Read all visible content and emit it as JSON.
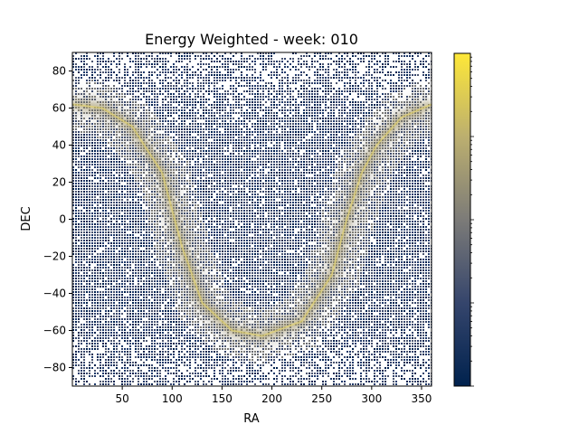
{
  "chart_data": {
    "type": "heatmap",
    "title": "Energy Weighted - week: 010",
    "xlabel": "RA",
    "ylabel": "DEC",
    "xlim": [
      0,
      360
    ],
    "ylim": [
      -90,
      90
    ],
    "x_ticks": [
      50,
      100,
      150,
      200,
      250,
      300,
      350
    ],
    "y_ticks": [
      -80,
      -60,
      -40,
      -20,
      0,
      20,
      40,
      60,
      80
    ],
    "colormap": "cividis",
    "colorbar_scale": "log",
    "colors": {
      "low": "#00224e",
      "mid": "#7c7b78",
      "high": "#fee838",
      "background": "#ffffff"
    },
    "galactic_plane_ridge": [
      {
        "ra": 0,
        "dec": 62
      },
      {
        "ra": 30,
        "dec": 60
      },
      {
        "ra": 60,
        "dec": 50
      },
      {
        "ra": 90,
        "dec": 25
      },
      {
        "ra": 110,
        "dec": -15
      },
      {
        "ra": 130,
        "dec": -45
      },
      {
        "ra": 160,
        "dec": -60
      },
      {
        "ra": 190,
        "dec": -63
      },
      {
        "ra": 230,
        "dec": -55
      },
      {
        "ra": 260,
        "dec": -30
      },
      {
        "ra": 275,
        "dec": 0
      },
      {
        "ra": 290,
        "dec": 25
      },
      {
        "ra": 305,
        "dec": 40
      },
      {
        "ra": 330,
        "dec": 55
      },
      {
        "ra": 360,
        "dec": 62
      }
    ]
  }
}
